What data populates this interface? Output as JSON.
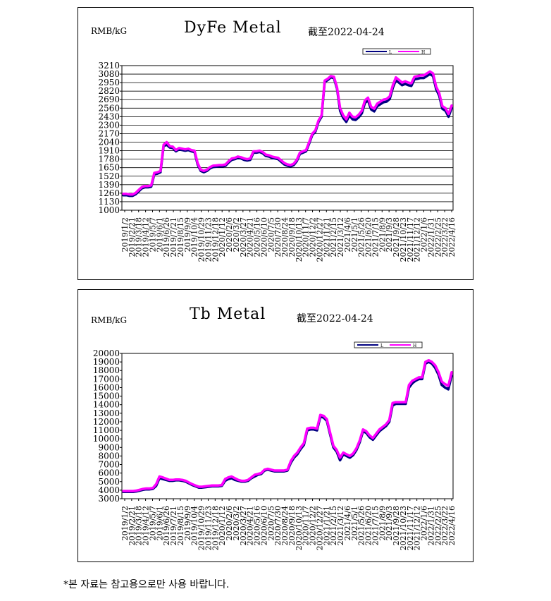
{
  "footnote": "*본 자료는 참고용으로만 사용 바랍니다.",
  "colors": {
    "series_top": "#ff00ff",
    "series_under": "#000080",
    "grid": "#000000"
  },
  "charts": [
    {
      "unit": "RMB/kG",
      "title": "DyFe Metal",
      "asof": "截至2022-04-24",
      "legend": [
        "L",
        "H"
      ]
    },
    {
      "unit": "RMB/kG",
      "title": "Tb Metal",
      "asof": "截至2022-04-24",
      "legend": [
        "L",
        "H"
      ]
    }
  ],
  "chart_data": [
    {
      "type": "line",
      "title": "DyFe Metal",
      "ylabel": "RMB/kG",
      "ylim": [
        1000,
        3210
      ],
      "yticks": [
        1000,
        1130,
        1260,
        1390,
        1520,
        1650,
        1780,
        1910,
        2040,
        2170,
        2300,
        2430,
        2560,
        2690,
        2820,
        2950,
        3080,
        3210
      ],
      "xticks": [
        "2019/1/2",
        "2019/2/21",
        "2019/3/18",
        "2019/4/12",
        "2019/5/7",
        "2019/6/1",
        "2019/6/26",
        "2019/7/21",
        "2019/8/15",
        "2019/9/9",
        "2019/10/4",
        "2019/10/29",
        "2019/11/23",
        "2019/12/18",
        "2020/1/12",
        "2020/2/6",
        "2020/3/2",
        "2020/3/27",
        "2020/4/21",
        "2020/5/16",
        "2020/6/10",
        "2020/7/5",
        "2020/7/30",
        "2020/8/24",
        "2020/9/18",
        "2020/10/13",
        "2020/11/7",
        "2020/12/2",
        "2020/12/27",
        "2021/1/21",
        "2021/2/15",
        "2021/3/12",
        "2021/4/6",
        "2021/5/1",
        "2021/5/26",
        "2021/6/20",
        "2021/7/15",
        "2021/8/9",
        "2021/9/3",
        "2021/9/28",
        "2021/10/23",
        "2021/11/17",
        "2021/12/12",
        "2022/1/6",
        "2022/1/31",
        "2022/2/25",
        "2022/3/22",
        "2022/4/16"
      ],
      "grid": true,
      "legend_position": "top-right",
      "series": [
        {
          "name": "L",
          "values": [
            1230,
            1230,
            1220,
            1220,
            1245,
            1290,
            1335,
            1350,
            1350,
            1360,
            1550,
            1560,
            1580,
            1980,
            2000,
            1960,
            1950,
            1900,
            1930,
            1920,
            1910,
            1920,
            1900,
            1890,
            1700,
            1600,
            1580,
            1600,
            1640,
            1660,
            1665,
            1670,
            1670,
            1680,
            1730,
            1770,
            1780,
            1800,
            1790,
            1770,
            1760,
            1770,
            1880,
            1880,
            1890,
            1870,
            1830,
            1820,
            1800,
            1790,
            1780,
            1740,
            1700,
            1680,
            1670,
            1690,
            1750,
            1860,
            1880,
            1900,
            2020,
            2150,
            2200,
            2350,
            2430,
            2960,
            2990,
            3030,
            3020,
            2860,
            2520,
            2410,
            2350,
            2450,
            2390,
            2380,
            2420,
            2480,
            2640,
            2680,
            2540,
            2510,
            2590,
            2620,
            2650,
            2660,
            2700,
            2870,
            2990,
            2950,
            2910,
            2930,
            2910,
            2900,
            3000,
            3010,
            3020,
            3020,
            3050,
            3080,
            3050,
            2850,
            2750,
            2550,
            2520,
            2430,
            2560
          ]
        },
        {
          "name": "H",
          "values": [
            1250,
            1250,
            1240,
            1240,
            1265,
            1310,
            1355,
            1370,
            1370,
            1380,
            1570,
            1580,
            1600,
            2000,
            2040,
            1980,
            1970,
            1920,
            1950,
            1940,
            1930,
            1940,
            1920,
            1910,
            1720,
            1620,
            1600,
            1620,
            1660,
            1680,
            1685,
            1690,
            1690,
            1700,
            1750,
            1790,
            1800,
            1820,
            1810,
            1790,
            1780,
            1790,
            1900,
            1900,
            1910,
            1890,
            1850,
            1840,
            1820,
            1810,
            1800,
            1760,
            1720,
            1700,
            1690,
            1710,
            1770,
            1880,
            1900,
            1920,
            2040,
            2170,
            2220,
            2370,
            2450,
            2980,
            3010,
            3050,
            3040,
            2880,
            2560,
            2450,
            2390,
            2490,
            2430,
            2420,
            2460,
            2520,
            2680,
            2720,
            2580,
            2550,
            2630,
            2660,
            2690,
            2700,
            2740,
            2910,
            3030,
            2990,
            2950,
            2970,
            2950,
            2940,
            3040,
            3050,
            3060,
            3060,
            3090,
            3120,
            3090,
            2890,
            2790,
            2590,
            2560,
            2470,
            2600
          ]
        }
      ]
    },
    {
      "type": "line",
      "title": "Tb Metal",
      "ylabel": "RMB/kG",
      "ylim": [
        3000,
        20000
      ],
      "yticks": [
        3000,
        4000,
        5000,
        6000,
        7000,
        8000,
        9000,
        10000,
        11000,
        12000,
        13000,
        14000,
        15000,
        16000,
        17000,
        18000,
        19000,
        20000
      ],
      "xticks": [
        "2019/1/2",
        "2019/2/21",
        "2019/3/18",
        "2019/4/12",
        "2019/5/7",
        "2019/6/1",
        "2019/6/26",
        "2019/7/21",
        "2019/8/15",
        "2019/9/9",
        "2019/10/4",
        "2019/10/29",
        "2019/11/23",
        "2019/12/18",
        "2020/1/12",
        "2020/2/6",
        "2020/3/2",
        "2020/3/27",
        "2020/4/21",
        "2020/5/16",
        "2020/6/10",
        "2020/7/5",
        "2020/7/30",
        "2020/8/24",
        "2020/9/18",
        "2020/10/13",
        "2020/11/7",
        "2020/12/2",
        "2020/12/27",
        "2021/1/21",
        "2021/2/15",
        "2021/3/12",
        "2021/4/6",
        "2021/5/1",
        "2021/5/26",
        "2021/6/20",
        "2021/7/15",
        "2021/8/9",
        "2021/9/3",
        "2021/9/28",
        "2021/10/23",
        "2021/11/17",
        "2021/12/12",
        "2022/1/6",
        "2022/1/31",
        "2022/2/25",
        "2022/3/22",
        "2022/4/16"
      ],
      "grid": false,
      "legend_position": "top-right",
      "series": [
        {
          "name": "L",
          "values": [
            3800,
            3800,
            3800,
            3800,
            3850,
            3950,
            4050,
            4100,
            4100,
            4150,
            4500,
            5400,
            5300,
            5200,
            5100,
            5100,
            5150,
            5150,
            5100,
            5000,
            4800,
            4600,
            4450,
            4300,
            4300,
            4350,
            4400,
            4450,
            4450,
            4450,
            4500,
            5100,
            5300,
            5400,
            5200,
            5100,
            5000,
            5000,
            5100,
            5400,
            5600,
            5800,
            5900,
            6300,
            6400,
            6300,
            6200,
            6200,
            6200,
            6200,
            6300,
            7200,
            7800,
            8200,
            8800,
            9300,
            11000,
            11100,
            11100,
            11000,
            12600,
            12500,
            12100,
            10500,
            9000,
            8500,
            7500,
            8200,
            8000,
            7800,
            8100,
            8700,
            9600,
            10900,
            10700,
            10200,
            9900,
            10400,
            10900,
            11200,
            11500,
            12000,
            13900,
            14100,
            14100,
            14100,
            14100,
            16000,
            16500,
            16800,
            17000,
            17000,
            18800,
            19000,
            18800,
            18300,
            17500,
            16300,
            16000,
            15800,
            17400
          ]
        },
        {
          "name": "H",
          "values": [
            3900,
            3900,
            3900,
            3900,
            3950,
            4050,
            4150,
            4200,
            4200,
            4250,
            4700,
            5600,
            5500,
            5350,
            5200,
            5200,
            5250,
            5250,
            5200,
            5100,
            4900,
            4700,
            4550,
            4400,
            4400,
            4450,
            4500,
            4550,
            4550,
            4550,
            4600,
            5300,
            5500,
            5600,
            5400,
            5200,
            5100,
            5100,
            5200,
            5500,
            5800,
            5900,
            6000,
            6400,
            6500,
            6400,
            6300,
            6300,
            6300,
            6300,
            6400,
            7400,
            8000,
            8400,
            9000,
            9500,
            11200,
            11300,
            11300,
            11200,
            12800,
            12700,
            12300,
            10700,
            9200,
            8700,
            7800,
            8400,
            8200,
            8000,
            8300,
            8900,
            9800,
            11100,
            10900,
            10400,
            10100,
            10600,
            11100,
            11400,
            11700,
            12200,
            14200,
            14300,
            14300,
            14300,
            14300,
            16300,
            16800,
            17000,
            17200,
            17200,
            19000,
            19200,
            19000,
            18600,
            17800,
            16700,
            16400,
            16200,
            17800
          ]
        }
      ]
    }
  ]
}
